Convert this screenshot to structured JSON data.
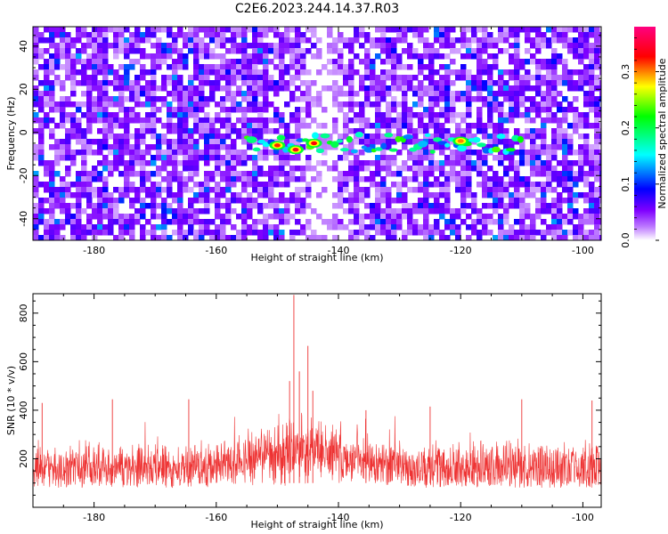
{
  "title": "C2E6.2023.244.14.37.R03",
  "chart_data": [
    {
      "type": "heatmap",
      "xlabel": "Height of straight line (km)",
      "ylabel": "Frequency (Hz)",
      "xlim": [
        -190,
        -97
      ],
      "ylim": [
        -50,
        49
      ],
      "x_ticks": [
        -180,
        -160,
        -140,
        -120,
        -100
      ],
      "y_ticks": [
        -40,
        -20,
        0,
        20,
        40
      ],
      "colorbar": {
        "label": "Normalized spectral amplitude",
        "range": [
          0.0,
          0.38
        ],
        "ticks": [
          0.0,
          0.1,
          0.2,
          0.3
        ],
        "colors": [
          "#ffffff",
          "#7f00ff",
          "#0000ff",
          "#00ffff",
          "#00ff00",
          "#ffff00",
          "#ff0000",
          "#ff0080"
        ]
      },
      "features": [
        {
          "x_range": [
            -155,
            -110
          ],
          "frequency": -5,
          "amplitude": 0.2
        },
        {
          "x": -150,
          "frequency": -6,
          "amplitude": 0.32
        },
        {
          "x": -147,
          "frequency": -8,
          "amplitude": 0.34
        },
        {
          "x": -144,
          "frequency": -5,
          "amplitude": 0.33
        },
        {
          "x": -120,
          "frequency": -4,
          "amplitude": 0.3
        }
      ]
    },
    {
      "type": "line",
      "xlabel": "Height of straight line (km)",
      "ylabel": "SNR (10 * v/v)",
      "xlim": [
        -190,
        -97
      ],
      "ylim": [
        0,
        880
      ],
      "x_ticks": [
        -180,
        -160,
        -140,
        -120,
        -100
      ],
      "y_ticks": [
        200,
        400,
        600,
        800
      ],
      "series_color": "#ee3333",
      "baseline": [
        40,
        300
      ],
      "peaks": [
        {
          "x": -147.3,
          "y": 875
        },
        {
          "x": -145.0,
          "y": 665
        },
        {
          "x": -148.0,
          "y": 520
        },
        {
          "x": -144.2,
          "y": 480
        },
        {
          "x": -146.4,
          "y": 560
        },
        {
          "x": -188.5,
          "y": 430
        },
        {
          "x": -177.0,
          "y": 445
        },
        {
          "x": -164.5,
          "y": 445
        },
        {
          "x": -110.0,
          "y": 445
        },
        {
          "x": -135.5,
          "y": 400
        },
        {
          "x": -125.0,
          "y": 415
        },
        {
          "x": -98.5,
          "y": 440
        }
      ]
    }
  ]
}
